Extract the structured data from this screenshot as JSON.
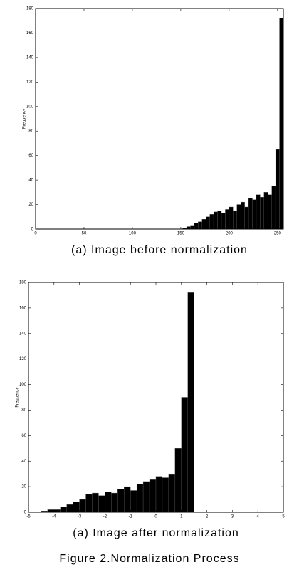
{
  "chart_data": [
    {
      "type": "histogram",
      "title": "(a)  Image  before  normalization",
      "y_label": "Frequency",
      "color": "#000000",
      "bins": [
        152,
        156,
        160,
        164,
        168,
        172,
        176,
        180,
        184,
        188,
        192,
        196,
        200,
        204,
        208,
        212,
        216,
        220,
        224,
        228,
        232,
        236,
        240,
        244,
        248,
        252,
        256
      ],
      "values": [
        1,
        2,
        3,
        5,
        6,
        8,
        10,
        12,
        14,
        15,
        13,
        16,
        18,
        15,
        20,
        22,
        18,
        25,
        24,
        28,
        26,
        30,
        28,
        35,
        65,
        172
      ],
      "xlim": [
        0,
        256
      ],
      "xticks": [
        0,
        50,
        100,
        150,
        200,
        250
      ],
      "ylim": [
        0,
        180
      ],
      "yticks": [
        0,
        20,
        40,
        60,
        80,
        100,
        120,
        140,
        160,
        180
      ]
    },
    {
      "type": "histogram",
      "title": "(a)  Image  after  normalization",
      "y_label": "Frequency",
      "color": "#000000",
      "bins": [
        -4.5,
        -4.25,
        -4,
        -3.75,
        -3.5,
        -3.25,
        -3,
        -2.75,
        -2.5,
        -2.25,
        -2,
        -1.75,
        -1.5,
        -1.25,
        -1,
        -0.75,
        -0.5,
        -0.25,
        0,
        0.25,
        0.5,
        0.75,
        1,
        1.25,
        1.5
      ],
      "values": [
        1,
        2,
        2,
        4,
        6,
        8,
        10,
        14,
        15,
        13,
        16,
        15,
        18,
        20,
        17,
        22,
        24,
        26,
        28,
        27,
        30,
        50,
        90,
        172
      ],
      "xlim": [
        -5,
        5
      ],
      "xticks": [
        -5,
        -4,
        -3,
        -2,
        -1,
        0,
        1,
        2,
        3,
        4,
        5
      ],
      "ylim": [
        0,
        180
      ],
      "yticks": [
        0,
        20,
        40,
        60,
        80,
        100,
        120,
        140,
        160,
        180
      ]
    }
  ],
  "figure_caption": "Figure  2.Normalization  Process"
}
